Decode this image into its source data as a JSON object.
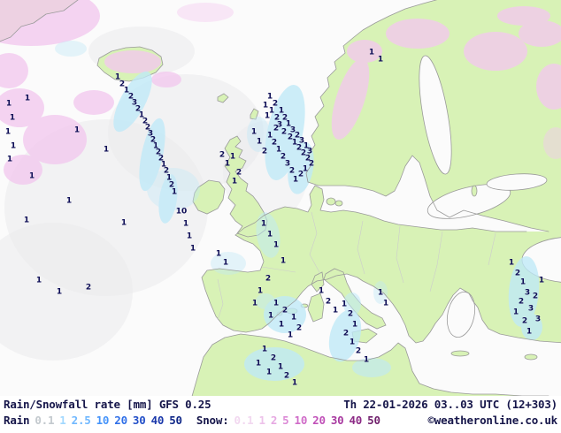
{
  "palette": {
    "land": "#d8f2b6",
    "sea": "#fbfbfb",
    "coast": "#9a9a9a",
    "border": "#cccccc",
    "snow": "#f3c9ef",
    "rain": "#bfe9f8",
    "wash": "#e9e9ec",
    "value_color": "#0c0c55",
    "text_color": "#16164a"
  },
  "legend": {
    "title": "Rain/Snowfall rate [mm] GFS 0.25",
    "datetime": "Th 22-01-2026 03..03 UTC (12+303)",
    "rain_label": "Rain",
    "rain_scale": [
      {
        "value": "0.1",
        "color": "#c3c9ce"
      },
      {
        "value": "1",
        "color": "#a2d8ff"
      },
      {
        "value": "2.5",
        "color": "#70b8ff"
      },
      {
        "value": "10",
        "color": "#4694fa"
      },
      {
        "value": "20",
        "color": "#2f6fe8"
      },
      {
        "value": "30",
        "color": "#2450c8"
      },
      {
        "value": "40",
        "color": "#1a38aa"
      },
      {
        "value": "50",
        "color": "#102888"
      }
    ],
    "snow_label": "Snow:",
    "snow_scale": [
      {
        "value": "0.1",
        "color": "#f2d8f0"
      },
      {
        "value": "1",
        "color": "#edc2ea"
      },
      {
        "value": "2",
        "color": "#e6a8e2"
      },
      {
        "value": "5",
        "color": "#dc8ad6"
      },
      {
        "value": "10",
        "color": "#d06cc8"
      },
      {
        "value": "20",
        "color": "#c050b8"
      },
      {
        "value": "30",
        "color": "#a83aa0"
      },
      {
        "value": "40",
        "color": "#8c2a86"
      },
      {
        "value": "50",
        "color": "#70206c"
      }
    ],
    "copyright": "©weatheronline.co.uk"
  },
  "map_values": [
    [
      10,
      118,
      "1"
    ],
    [
      14,
      134,
      "1"
    ],
    [
      9,
      150,
      "1"
    ],
    [
      15,
      166,
      "1"
    ],
    [
      11,
      181,
      "1"
    ],
    [
      31,
      112,
      "1"
    ],
    [
      87,
      148,
      "1"
    ],
    [
      120,
      170,
      "1"
    ],
    [
      36,
      200,
      "1"
    ],
    [
      78,
      228,
      "1"
    ],
    [
      140,
      253,
      "1"
    ],
    [
      44,
      318,
      "1"
    ],
    [
      67,
      331,
      "1"
    ],
    [
      100,
      326,
      "2"
    ],
    [
      30,
      250,
      "1"
    ],
    [
      133,
      88,
      "1"
    ],
    [
      138,
      96,
      "2"
    ],
    [
      143,
      103,
      "1"
    ],
    [
      148,
      110,
      "2"
    ],
    [
      152,
      117,
      "3"
    ],
    [
      156,
      124,
      "2"
    ],
    [
      160,
      131,
      "1"
    ],
    [
      164,
      138,
      "2"
    ],
    [
      167,
      145,
      "2"
    ],
    [
      170,
      152,
      "3"
    ],
    [
      173,
      159,
      "2"
    ],
    [
      176,
      166,
      "1"
    ],
    [
      179,
      173,
      "2"
    ],
    [
      182,
      180,
      "2"
    ],
    [
      185,
      187,
      "1"
    ],
    [
      188,
      194,
      "2"
    ],
    [
      191,
      202,
      "1"
    ],
    [
      194,
      210,
      "2"
    ],
    [
      197,
      218,
      "1"
    ],
    [
      205,
      240,
      "10"
    ],
    [
      210,
      254,
      "1"
    ],
    [
      214,
      268,
      "1"
    ],
    [
      218,
      282,
      "1"
    ],
    [
      251,
      176,
      "2"
    ],
    [
      257,
      186,
      "1"
    ],
    [
      263,
      178,
      "1"
    ],
    [
      270,
      196,
      "2"
    ],
    [
      265,
      206,
      "1"
    ],
    [
      287,
      150,
      "1"
    ],
    [
      293,
      161,
      "1"
    ],
    [
      299,
      172,
      "2"
    ],
    [
      305,
      110,
      "1"
    ],
    [
      311,
      118,
      "2"
    ],
    [
      307,
      126,
      "1"
    ],
    [
      313,
      134,
      "2"
    ],
    [
      318,
      126,
      "1"
    ],
    [
      322,
      134,
      "2"
    ],
    [
      316,
      142,
      "3"
    ],
    [
      321,
      150,
      "2"
    ],
    [
      326,
      141,
      "1"
    ],
    [
      328,
      156,
      "2"
    ],
    [
      331,
      148,
      "3"
    ],
    [
      333,
      162,
      "1"
    ],
    [
      336,
      154,
      "2"
    ],
    [
      338,
      168,
      "2"
    ],
    [
      341,
      160,
      "3"
    ],
    [
      343,
      174,
      "2"
    ],
    [
      346,
      166,
      "1"
    ],
    [
      348,
      180,
      "2"
    ],
    [
      350,
      172,
      "3"
    ],
    [
      352,
      186,
      "2"
    ],
    [
      345,
      192,
      "1"
    ],
    [
      340,
      198,
      "2"
    ],
    [
      334,
      204,
      "1"
    ],
    [
      330,
      194,
      "2"
    ],
    [
      325,
      186,
      "3"
    ],
    [
      320,
      178,
      "2"
    ],
    [
      315,
      170,
      "1"
    ],
    [
      310,
      162,
      "2"
    ],
    [
      305,
      154,
      "1"
    ],
    [
      312,
      146,
      "2"
    ],
    [
      302,
      132,
      "1"
    ],
    [
      300,
      120,
      "1"
    ],
    [
      420,
      60,
      "1"
    ],
    [
      430,
      68,
      "1"
    ],
    [
      298,
      254,
      "1"
    ],
    [
      305,
      266,
      "1"
    ],
    [
      312,
      278,
      "1"
    ],
    [
      320,
      296,
      "1"
    ],
    [
      303,
      316,
      "2"
    ],
    [
      294,
      330,
      "1"
    ],
    [
      288,
      344,
      "1"
    ],
    [
      255,
      298,
      "1"
    ],
    [
      247,
      288,
      "1"
    ],
    [
      312,
      344,
      "1"
    ],
    [
      322,
      352,
      "2"
    ],
    [
      332,
      360,
      "1"
    ],
    [
      318,
      368,
      "1"
    ],
    [
      306,
      358,
      "1"
    ],
    [
      338,
      372,
      "2"
    ],
    [
      328,
      380,
      "1"
    ],
    [
      363,
      330,
      "1"
    ],
    [
      371,
      342,
      "2"
    ],
    [
      379,
      352,
      "1"
    ],
    [
      389,
      345,
      "1"
    ],
    [
      396,
      356,
      "2"
    ],
    [
      401,
      368,
      "1"
    ],
    [
      391,
      378,
      "2"
    ],
    [
      398,
      388,
      "1"
    ],
    [
      405,
      398,
      "2"
    ],
    [
      414,
      408,
      "1"
    ],
    [
      299,
      396,
      "1"
    ],
    [
      309,
      406,
      "2"
    ],
    [
      317,
      416,
      "1"
    ],
    [
      324,
      426,
      "2"
    ],
    [
      304,
      422,
      "1"
    ],
    [
      292,
      412,
      "1"
    ],
    [
      333,
      434,
      "1"
    ],
    [
      430,
      332,
      "1"
    ],
    [
      436,
      344,
      "1"
    ],
    [
      578,
      298,
      "1"
    ],
    [
      585,
      310,
      "2"
    ],
    [
      591,
      320,
      "1"
    ],
    [
      596,
      332,
      "3"
    ],
    [
      589,
      342,
      "2"
    ],
    [
      583,
      354,
      "1"
    ],
    [
      593,
      364,
      "2"
    ],
    [
      600,
      350,
      "3"
    ],
    [
      605,
      336,
      "2"
    ],
    [
      598,
      376,
      "1"
    ],
    [
      608,
      362,
      "3"
    ],
    [
      612,
      318,
      "1"
    ]
  ]
}
